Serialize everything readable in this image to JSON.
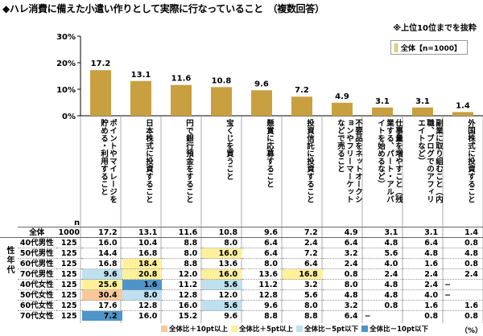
{
  "title": "◆ハレ消費に備えた小遣い作りとして実際に行なっていること　（複数回答）",
  "note": "※上位10位までを抜粋",
  "legend_label": "全体【n=1000】",
  "n_label": "n",
  "side_label": "性年代",
  "unit": "（%）",
  "colors": {
    "bar": "#c9a040",
    "high10": "#f9c89b",
    "high5": "#fff09a",
    "low5": "#bfe0ef",
    "low10": "#4d95c9"
  },
  "bottom_legend": [
    "全体比＋10pt以上",
    "全体比＋5pt以上",
    "全体比－5pt以下",
    "全体比－10pt以下"
  ],
  "chart_data": {
    "type": "bar",
    "ylim": [
      0,
      30
    ],
    "yticks": [
      "0%",
      "10%",
      "20%",
      "30%"
    ],
    "categories": [
      "ポイントやマイレージを貯める・利用すること",
      "日本株式に投資すること",
      "円で銀行預金をすること",
      "宝くじを買うこと",
      "懸賞に応募すること",
      "投資信託に投資すること",
      "不要品をネットオークションやフリーマーケットなどで売ること",
      "仕事量を増やすこと（残業する、パート・アルバイトを始めるなど）",
      "副業に取り組むこと（内職、ブログでのアフィリエイトなど）",
      "外国株式に投資すること"
    ],
    "values": [
      17.2,
      13.1,
      11.6,
      10.8,
      9.6,
      7.2,
      4.9,
      3.1,
      3.1,
      1.4
    ],
    "value_labels": [
      "17.2",
      "13.1",
      "11.6",
      "10.8",
      "9.6",
      "7.2",
      "4.9",
      "3.1",
      "3.1",
      "1.4"
    ]
  },
  "table": {
    "total": {
      "label": "全体",
      "n": "1000",
      "values": [
        "17.2",
        "13.1",
        "11.6",
        "10.8",
        "9.6",
        "7.2",
        "4.9",
        "3.1",
        "3.1",
        "1.4"
      ]
    },
    "rows": [
      {
        "label": "40代男性",
        "n": "125",
        "values": [
          "16.0",
          "10.4",
          "8.8",
          "8.0",
          "6.4",
          "2.4",
          "6.4",
          "4.8",
          "6.4",
          "0.8"
        ],
        "hl": [
          "",
          "",
          "",
          "",
          "",
          "",
          "",
          "",
          "",
          ""
        ]
      },
      {
        "label": "50代男性",
        "n": "125",
        "values": [
          "14.4",
          "16.8",
          "8.0",
          "16.0",
          "6.4",
          "7.2",
          "3.2",
          "5.6",
          "4.8",
          "4.8"
        ],
        "hl": [
          "",
          "",
          "",
          "high5",
          "",
          "",
          "",
          "",
          "",
          ""
        ]
      },
      {
        "label": "60代男性",
        "n": "125",
        "values": [
          "16.8",
          "18.4",
          "8.8",
          "13.6",
          "8.0",
          "6.4",
          "2.4",
          "4.0",
          "1.6",
          "0.8"
        ],
        "hl": [
          "",
          "high5",
          "",
          "",
          "",
          "",
          "",
          "",
          "",
          ""
        ]
      },
      {
        "label": "70代男性",
        "n": "125",
        "values": [
          "9.6",
          "20.8",
          "12.0",
          "16.0",
          "13.6",
          "16.8",
          "0.8",
          "2.4",
          "2.4",
          "2.4"
        ],
        "hl": [
          "low5",
          "high5",
          "",
          "high5",
          "",
          "high5",
          "",
          "",
          "",
          ""
        ]
      },
      {
        "label": "40代女性",
        "n": "125",
        "values": [
          "25.6",
          "1.6",
          "11.2",
          "5.6",
          "11.2",
          "3.2",
          "8.0",
          "4.8",
          "2.4",
          "−"
        ],
        "hl": [
          "high5",
          "low10",
          "",
          "low5",
          "",
          "",
          "",
          "",
          "",
          ""
        ]
      },
      {
        "label": "50代女性",
        "n": "125",
        "values": [
          "30.4",
          "8.0",
          "12.8",
          "12.0",
          "12.8",
          "5.6",
          "4.8",
          "4.8",
          "4.0",
          "−"
        ],
        "hl": [
          "high10",
          "low5",
          "",
          "",
          "",
          "",
          "",
          "",
          "",
          ""
        ]
      },
      {
        "label": "60代女性",
        "n": "125",
        "values": [
          "17.6",
          "12.8",
          "16.0",
          "5.6",
          "9.6",
          "8.0",
          "3.2",
          "0.8",
          "1.6",
          "1.6"
        ],
        "hl": [
          "",
          "",
          "",
          "low5",
          "",
          "",
          "",
          "",
          "",
          ""
        ]
      },
      {
        "label": "70代女性",
        "n": "125",
        "values": [
          "7.2",
          "16.0",
          "15.2",
          "9.6",
          "8.8",
          "8.8",
          "6.4",
          "−",
          "0.8",
          "0.8"
        ],
        "hl": [
          "low10",
          "",
          "",
          "",
          "",
          "",
          "",
          "",
          "",
          ""
        ]
      }
    ]
  }
}
